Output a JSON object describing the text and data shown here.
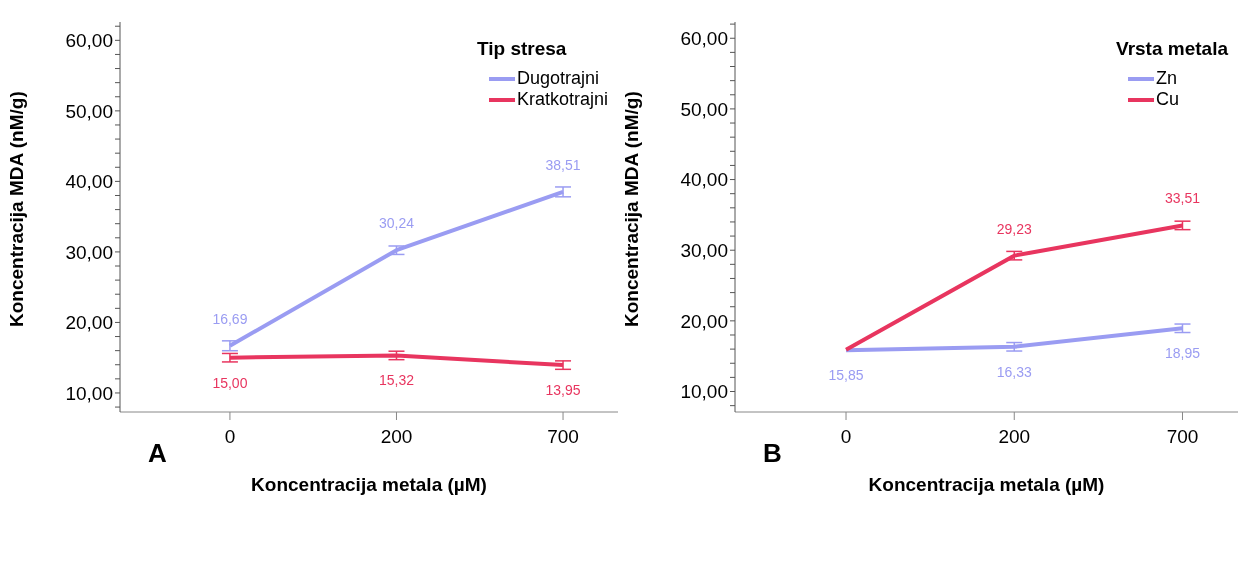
{
  "chart_data": [
    {
      "type": "line",
      "ylabel": "Koncentracija MDA (nM/g)",
      "xlabel": "Koncentracija metala (µM)",
      "legend_title": "Tip stresa",
      "legend": "top right",
      "marker": "none",
      "line_style": "solid",
      "categories": [
        "0",
        "200",
        "700"
      ],
      "ylim": [
        7.3,
        62.6
      ],
      "yticks": [
        {
          "value": 8,
          "label": null
        },
        {
          "value": 10,
          "label": "10,00"
        },
        {
          "value": 12,
          "label": null
        },
        {
          "value": 14,
          "label": null
        },
        {
          "value": 16,
          "label": null
        },
        {
          "value": 18,
          "label": null
        },
        {
          "value": 20,
          "label": "20,00"
        },
        {
          "value": 22,
          "label": null
        },
        {
          "value": 24,
          "label": null
        },
        {
          "value": 26,
          "label": null
        },
        {
          "value": 28,
          "label": null
        },
        {
          "value": 30,
          "label": "30,00"
        },
        {
          "value": 32,
          "label": null
        },
        {
          "value": 34,
          "label": null
        },
        {
          "value": 36,
          "label": null
        },
        {
          "value": 38,
          "label": null
        },
        {
          "value": 40,
          "label": "40,00"
        },
        {
          "value": 42,
          "label": null
        },
        {
          "value": 44,
          "label": null
        },
        {
          "value": 46,
          "label": null
        },
        {
          "value": 48,
          "label": null
        },
        {
          "value": 50,
          "label": "50,00"
        },
        {
          "value": 52,
          "label": null
        },
        {
          "value": 54,
          "label": null
        },
        {
          "value": 56,
          "label": null
        },
        {
          "value": 58,
          "label": null
        },
        {
          "value": 60,
          "label": "60,00"
        },
        {
          "value": 62,
          "label": null
        }
      ],
      "annotations": [
        "A"
      ],
      "series": [
        {
          "name": "Dugotrajni",
          "color": "#9a9cf2",
          "values": [
            16.69,
            30.24,
            38.51
          ],
          "errors": [
            0.7,
            0.6,
            0.7
          ],
          "value_labels": [
            "16,69",
            "30,24",
            "38,51"
          ]
        },
        {
          "name": "Kratkotrajni",
          "color": "#e8355f",
          "values": [
            15.0,
            15.32,
            13.95
          ],
          "errors": [
            0.6,
            0.6,
            0.6
          ],
          "value_labels": [
            "15,00",
            "15,32",
            "13,95"
          ]
        }
      ]
    },
    {
      "type": "line",
      "ylabel": "Koncentracija MDA (nM/g)",
      "xlabel": "Koncentracija metala (µM)",
      "legend_title": "Vrsta metala",
      "legend": "top right",
      "marker": "none",
      "line_style": "solid",
      "categories": [
        "0",
        "200",
        "700"
      ],
      "ylim": [
        7.1,
        62.3
      ],
      "yticks": [
        {
          "value": 8,
          "label": null
        },
        {
          "value": 10,
          "label": "10,00"
        },
        {
          "value": 12,
          "label": null
        },
        {
          "value": 14,
          "label": null
        },
        {
          "value": 16,
          "label": null
        },
        {
          "value": 18,
          "label": null
        },
        {
          "value": 20,
          "label": "20,00"
        },
        {
          "value": 22,
          "label": null
        },
        {
          "value": 24,
          "label": null
        },
        {
          "value": 26,
          "label": null
        },
        {
          "value": 28,
          "label": null
        },
        {
          "value": 30,
          "label": "30,00"
        },
        {
          "value": 32,
          "label": null
        },
        {
          "value": 34,
          "label": null
        },
        {
          "value": 36,
          "label": null
        },
        {
          "value": 38,
          "label": null
        },
        {
          "value": 40,
          "label": "40,00"
        },
        {
          "value": 42,
          "label": null
        },
        {
          "value": 44,
          "label": null
        },
        {
          "value": 46,
          "label": null
        },
        {
          "value": 48,
          "label": null
        },
        {
          "value": 50,
          "label": "50,00"
        },
        {
          "value": 52,
          "label": null
        },
        {
          "value": 54,
          "label": null
        },
        {
          "value": 56,
          "label": null
        },
        {
          "value": 58,
          "label": null
        },
        {
          "value": 60,
          "label": "60,00"
        },
        {
          "value": 62,
          "label": null
        }
      ],
      "annotations": [
        "B"
      ],
      "series": [
        {
          "name": "Zn",
          "color": "#9a9cf2",
          "values": [
            15.85,
            16.33,
            18.95
          ],
          "errors": [
            null,
            0.6,
            0.6
          ],
          "value_labels": [
            "15,85",
            "16,33",
            "18,95"
          ]
        },
        {
          "name": "Cu",
          "color": "#e8355f",
          "values": [
            15.9,
            29.23,
            33.51
          ],
          "errors": [
            null,
            0.6,
            0.6
          ],
          "value_labels": [
            null,
            "29,23",
            "33,51"
          ]
        }
      ]
    }
  ]
}
